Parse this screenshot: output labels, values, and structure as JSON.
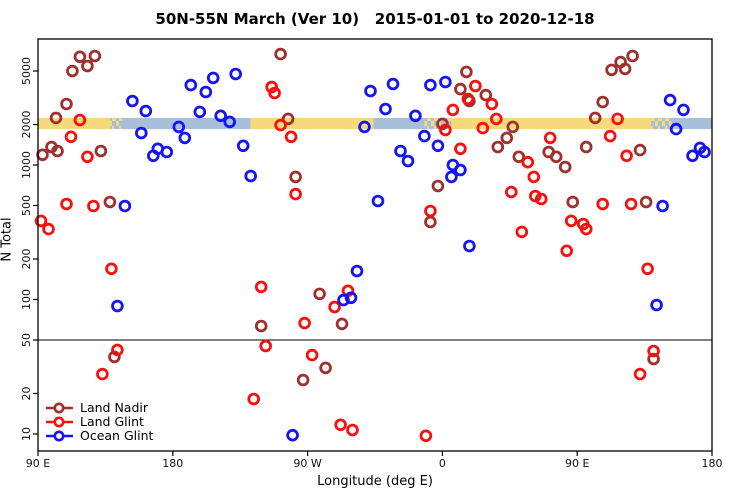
{
  "figure": {
    "title": "50N-55N March (Ver 10)   2015-01-01 to 2020-12-18",
    "background": "#ffffff"
  },
  "chart_data": {
    "type": "scatter",
    "title": "50N-55N March (Ver 10)   2015-01-01 to 2020-12-18",
    "xlabel": "Longitude (deg E)",
    "ylabel": "N Total",
    "x_axis": {
      "lim": [
        90,
        540
      ],
      "ticks": [
        90,
        180,
        270,
        360,
        450,
        540
      ],
      "tick_labels": [
        "90 E",
        "180",
        "90 W",
        "0",
        "90 E",
        "180"
      ]
    },
    "y_axis": {
      "scale": "log",
      "ticks": [
        10,
        20,
        50,
        100,
        200,
        500,
        1000,
        2000,
        5000
      ],
      "tick_labels": [
        "10",
        "20",
        "50",
        "100",
        "200",
        "500",
        "1000",
        "2000",
        "5000"
      ],
      "lim": [
        7,
        8650
      ]
    },
    "reference_line": {
      "value": 50,
      "color": "#000000"
    },
    "band": {
      "description": "land/ocean strip along 50N-55N",
      "value_top": 2240,
      "value_bottom": 1850,
      "colors": {
        "land": "#F6D97C",
        "ocean": "#A8BFDA"
      },
      "segments": [
        [
          90,
          138,
          "land"
        ],
        [
          138,
          146,
          "mixed"
        ],
        [
          146,
          232,
          "ocean"
        ],
        [
          232,
          314,
          "land"
        ],
        [
          314,
          348,
          "ocean"
        ],
        [
          348,
          366,
          "mixed"
        ],
        [
          366,
          499,
          "land"
        ],
        [
          499,
          513,
          "mixed"
        ],
        [
          513,
          540,
          "ocean"
        ]
      ]
    },
    "legend": {
      "position": "bottom-left"
    },
    "series": [
      {
        "name": "Land Nadir",
        "color": "#9E312D",
        "points": [
          [
            118,
            6380
          ],
          [
            113,
            5000
          ],
          [
            123,
            5450
          ],
          [
            128,
            6460
          ],
          [
            109,
            2840
          ],
          [
            102,
            2240
          ],
          [
            99,
            1360
          ],
          [
            103,
            1270
          ],
          [
            93,
            1190
          ],
          [
            132,
            1270
          ],
          [
            138,
            531
          ],
          [
            252,
            6680
          ],
          [
            257,
            2200
          ],
          [
            376,
            4920
          ],
          [
            372,
            3670
          ],
          [
            389,
            3310
          ],
          [
            378,
            2990
          ],
          [
            262,
            815
          ],
          [
            357,
            698
          ],
          [
            352,
            377
          ],
          [
            360,
            2020
          ],
          [
            473,
            5090
          ],
          [
            479,
            5830
          ],
          [
            487,
            6460
          ],
          [
            482,
            5180
          ],
          [
            467,
            2940
          ],
          [
            462,
            2240
          ],
          [
            407,
            1920
          ],
          [
            403,
            1590
          ],
          [
            397,
            1360
          ],
          [
            411,
            1150
          ],
          [
            431,
            1250
          ],
          [
            436,
            1150
          ],
          [
            442,
            967
          ],
          [
            447,
            531
          ],
          [
            456,
            1360
          ],
          [
            492,
            1290
          ],
          [
            496,
            531
          ],
          [
            141,
            37.4
          ],
          [
            278,
            110
          ],
          [
            293,
            65.8
          ],
          [
            239,
            63.5
          ],
          [
            282,
            31
          ],
          [
            267,
            25.2
          ],
          [
            501,
            36.1
          ]
        ]
      },
      {
        "name": "Land Glint",
        "color": "#FB0E0E",
        "points": [
          [
            118,
            2160
          ],
          [
            112,
            1620
          ],
          [
            123,
            1150
          ],
          [
            109,
            513
          ],
          [
            127,
            496
          ],
          [
            92,
            384
          ],
          [
            97,
            334
          ],
          [
            246,
            3800
          ],
          [
            248,
            3430
          ],
          [
            252,
            1980
          ],
          [
            259,
            1620
          ],
          [
            367,
            2570
          ],
          [
            382,
            3870
          ],
          [
            377,
            3100
          ],
          [
            362,
            1820
          ],
          [
            372,
            1320
          ],
          [
            262,
            608
          ],
          [
            352,
            455
          ],
          [
            387,
            1880
          ],
          [
            396,
            2200
          ],
          [
            393,
            2840
          ],
          [
            477,
            2200
          ],
          [
            472,
            1640
          ],
          [
            417,
            1050
          ],
          [
            421,
            815
          ],
          [
            406,
            630
          ],
          [
            422,
            588
          ],
          [
            426,
            559
          ],
          [
            446,
            384
          ],
          [
            454,
            364
          ],
          [
            456,
            334
          ],
          [
            467,
            513
          ],
          [
            486,
            513
          ],
          [
            413,
            318
          ],
          [
            483,
            1170
          ],
          [
            432,
            1590
          ],
          [
            139,
            169
          ],
          [
            143,
            42.2
          ],
          [
            133,
            27.9
          ],
          [
            234,
            18.2
          ],
          [
            297,
            116
          ],
          [
            288,
            88
          ],
          [
            239,
            124
          ],
          [
            268,
            66.8
          ],
          [
            242,
            45.1
          ],
          [
            273,
            38.6
          ],
          [
            292,
            11.7
          ],
          [
            300,
            10.7
          ],
          [
            349,
            9.7
          ],
          [
            443,
            230
          ],
          [
            497,
            169
          ],
          [
            501,
            41.4
          ],
          [
            492,
            27.9
          ]
        ]
      },
      {
        "name": "Ocean Glint",
        "color": "#1414F5",
        "points": [
          [
            153,
            2990
          ],
          [
            162,
            2520
          ],
          [
            159,
            1730
          ],
          [
            192,
            3930
          ],
          [
            202,
            3490
          ],
          [
            207,
            4440
          ],
          [
            222,
            4750
          ],
          [
            198,
            2480
          ],
          [
            212,
            2320
          ],
          [
            218,
            2090
          ],
          [
            184,
            1920
          ],
          [
            188,
            1590
          ],
          [
            227,
            1390
          ],
          [
            167,
            1170
          ],
          [
            170,
            1320
          ],
          [
            176,
            1250
          ],
          [
            232,
            828
          ],
          [
            148,
            496
          ],
          [
            312,
            3550
          ],
          [
            327,
            4000
          ],
          [
            352,
            3930
          ],
          [
            362,
            4140
          ],
          [
            322,
            2610
          ],
          [
            342,
            2320
          ],
          [
            308,
            1920
          ],
          [
            348,
            1640
          ],
          [
            357,
            1390
          ],
          [
            332,
            1270
          ],
          [
            337,
            1070
          ],
          [
            367,
            1000
          ],
          [
            372,
            918
          ],
          [
            366,
            815
          ],
          [
            317,
            540
          ],
          [
            378,
            250
          ],
          [
            512,
            3040
          ],
          [
            521,
            2570
          ],
          [
            516,
            1850
          ],
          [
            527,
            1170
          ],
          [
            532,
            1340
          ],
          [
            535,
            1250
          ],
          [
            507,
            496
          ],
          [
            143,
            89.5
          ],
          [
            303,
            163
          ],
          [
            294,
            99
          ],
          [
            299,
            103
          ],
          [
            260,
            9.8
          ],
          [
            503,
            91
          ]
        ]
      }
    ]
  }
}
